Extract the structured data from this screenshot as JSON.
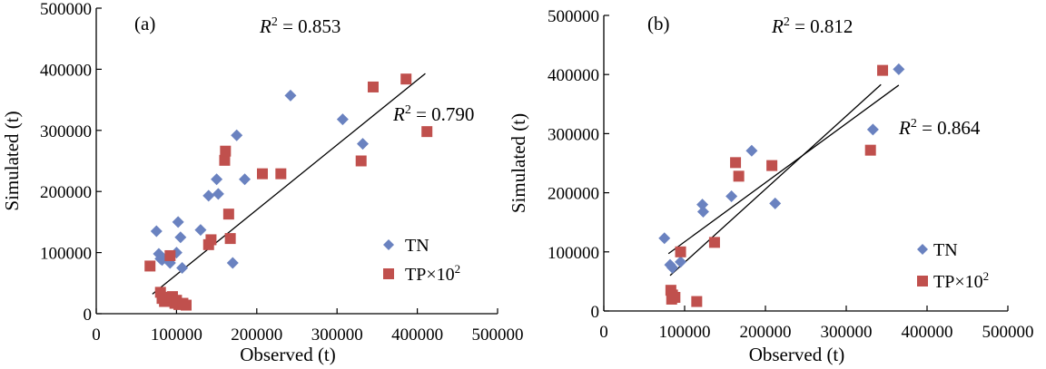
{
  "chart_data": [
    {
      "type": "scatter",
      "panel_label": "(a)",
      "xlabel": "Observed (t)",
      "ylabel": "Simulated (t)",
      "xlim": [
        0,
        500000
      ],
      "ylim": [
        0,
        500000
      ],
      "xticks": [
        0,
        100000,
        200000,
        300000,
        400000,
        500000
      ],
      "yticks": [
        0,
        100000,
        200000,
        300000,
        400000,
        500000
      ],
      "xtick_labels": [
        "0",
        "100000",
        "200000",
        "300000",
        "400000",
        "500000"
      ],
      "ytick_labels": [
        "0",
        "100000",
        "200000",
        "300000",
        "400000",
        "500000"
      ],
      "r2_labels": [
        {
          "series": "TN",
          "sym": "R",
          "sup": "2",
          "text": " = 0.853"
        },
        {
          "series": "TP×10²",
          "sym": "R",
          "sup": "2",
          "text": " = 0.790"
        }
      ],
      "legend_position": "bottom-right",
      "series": [
        {
          "name": "TN",
          "marker": "diamond",
          "color": "#6a82c0",
          "points": [
            [
              75000,
              135000
            ],
            [
              78000,
              98000
            ],
            [
              80000,
              90000
            ],
            [
              82000,
              88000
            ],
            [
              88000,
              92000
            ],
            [
              92000,
              83000
            ],
            [
              100000,
              100000
            ],
            [
              102000,
              150000
            ],
            [
              105000,
              125000
            ],
            [
              107000,
              75000
            ],
            [
              130000,
              137000
            ],
            [
              140000,
              193000
            ],
            [
              150000,
              220000
            ],
            [
              152000,
              196000
            ],
            [
              170000,
              83000
            ],
            [
              175000,
              292000
            ],
            [
              185000,
              220000
            ],
            [
              242000,
              357000
            ],
            [
              307000,
              318000
            ],
            [
              332000,
              278000
            ]
          ]
        },
        {
          "name": "TP×10²",
          "marker": "square",
          "color": "#c0504d",
          "points": [
            [
              67000,
              78000
            ],
            [
              80000,
              35000
            ],
            [
              82000,
              25000
            ],
            [
              85000,
              20000
            ],
            [
              90000,
              27000
            ],
            [
              92000,
              95000
            ],
            [
              95000,
              28000
            ],
            [
              98000,
              17000
            ],
            [
              100000,
              22000
            ],
            [
              103000,
              15000
            ],
            [
              108000,
              17000
            ],
            [
              112000,
              14000
            ],
            [
              140000,
              113000
            ],
            [
              143000,
              121000
            ],
            [
              160000,
              251000
            ],
            [
              161000,
              266000
            ],
            [
              165000,
              163000
            ],
            [
              167000,
              123000
            ],
            [
              207000,
              229000
            ],
            [
              230000,
              229000
            ],
            [
              330000,
              250000
            ],
            [
              345000,
              371000
            ],
            [
              386000,
              384000
            ],
            [
              412000,
              298000
            ]
          ]
        }
      ],
      "trendlines": [
        [
          70000,
          32000
        ],
        [
          410000,
          393000
        ]
      ]
    },
    {
      "type": "scatter",
      "panel_label": "(b)",
      "xlabel": "Observed (t)",
      "ylabel": "Simulated (t)",
      "xlim": [
        0,
        500000
      ],
      "ylim": [
        0,
        500000
      ],
      "xticks": [
        0,
        100000,
        200000,
        300000,
        400000,
        500000
      ],
      "yticks": [
        0,
        100000,
        200000,
        300000,
        400000,
        500000
      ],
      "xtick_labels": [
        "0",
        "100000",
        "200000",
        "300000",
        "400000",
        "500000"
      ],
      "ytick_labels": [
        "0",
        "100000",
        "200000",
        "300000",
        "400000",
        "500000"
      ],
      "r2_labels": [
        {
          "series": "TN",
          "sym": "R",
          "sup": "2",
          "text": " = 0.812"
        },
        {
          "series": "TP×10²",
          "sym": "R",
          "sup": "2",
          "text": " = 0.864"
        }
      ],
      "legend_position": "bottom-right",
      "series": [
        {
          "name": "TN",
          "marker": "diamond",
          "color": "#6a82c0",
          "points": [
            [
              75000,
              123000
            ],
            [
              82000,
              78000
            ],
            [
              85000,
              73000
            ],
            [
              95000,
              83000
            ],
            [
              122000,
              180000
            ],
            [
              123000,
              168000
            ],
            [
              158000,
              194000
            ],
            [
              183000,
              271000
            ],
            [
              212000,
              182000
            ],
            [
              333000,
              307000
            ],
            [
              365000,
              409000
            ]
          ]
        },
        {
          "name": "TP×10²",
          "marker": "square",
          "color": "#c0504d",
          "points": [
            [
              83000,
              35000
            ],
            [
              84000,
              20000
            ],
            [
              85000,
              27000
            ],
            [
              88000,
              23000
            ],
            [
              95000,
              100000
            ],
            [
              115000,
              16000
            ],
            [
              137000,
              116000
            ],
            [
              163000,
              251000
            ],
            [
              167000,
              228000
            ],
            [
              208000,
              246000
            ],
            [
              330000,
              272000
            ],
            [
              345000,
              407000
            ]
          ]
        }
      ],
      "trendlines": [
        [
          80000,
          97000
        ],
        [
          365000,
          382000
        ],
        [
          82000,
          60000
        ],
        [
          343000,
          383000
        ]
      ]
    }
  ],
  "legend_labels": {
    "tn": "TN",
    "tp": "TP×10",
    "tp_sup": "2"
  }
}
